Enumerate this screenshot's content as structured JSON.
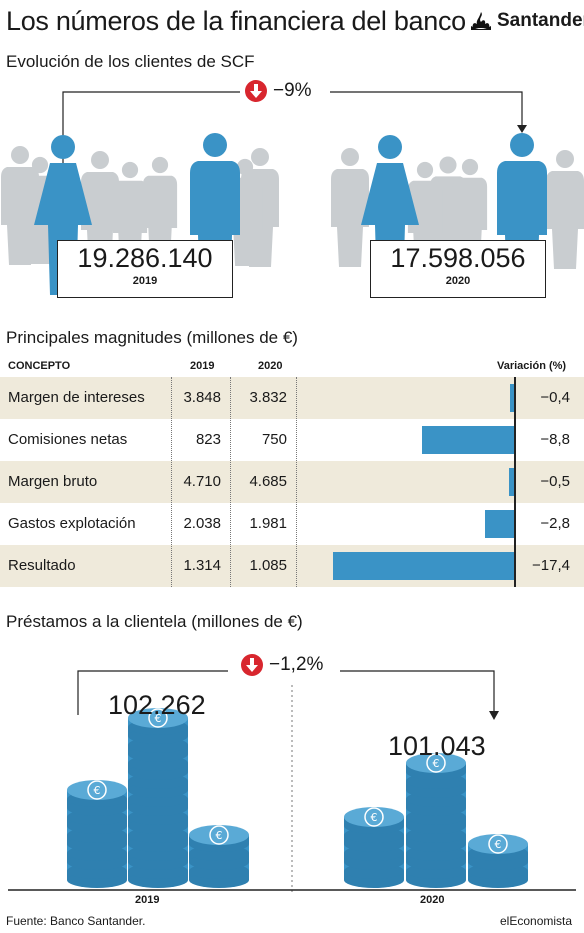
{
  "title": "Los números de la financiera del banco",
  "brand": "Santander",
  "colors": {
    "accent": "#3a93c6",
    "down": "#d8262e",
    "person": "#c9cdd0",
    "shade": "#efeadb"
  },
  "clients": {
    "subtitle": "Evolución de los clientes de SCF",
    "change": "−9%",
    "v2019": "19.286.140",
    "y2019": "2019",
    "v2020": "17.598.056",
    "y2020": "2020"
  },
  "magnitudes": {
    "subtitle": "Principales magnitudes (millones de €)",
    "headers": {
      "concept": "CONCEPTO",
      "y2019": "2019",
      "y2020": "2020",
      "variation": "Variación (%)"
    },
    "rows": [
      {
        "concept": "Margen de intereses",
        "v2019": "3.848",
        "v2020": "3.832",
        "var": "−0,4"
      },
      {
        "concept": "Comisiones netas",
        "v2019": "823",
        "v2020": "750",
        "var": "−8,8"
      },
      {
        "concept": "Margen bruto",
        "v2019": "4.710",
        "v2020": "4.685",
        "var": "−0,5"
      },
      {
        "concept": "Gastos explotación",
        "v2019": "2.038",
        "v2020": "1.981",
        "var": "−2,8"
      },
      {
        "concept": "Resultado",
        "v2019": "1.314",
        "v2020": "1.085",
        "var": "−17,4"
      }
    ]
  },
  "loans": {
    "subtitle": "Préstamos a la clientela (millones de €)",
    "change": "−1,2%",
    "v2019": "102.262",
    "v2020": "101.043",
    "y2019": "2019",
    "y2020": "2020"
  },
  "footer": {
    "source": "Fuente: Banco Santander.",
    "brand": "elEconomista"
  },
  "chart_data": {
    "type": "bar",
    "categories": [
      "Margen de intereses",
      "Comisiones netas",
      "Margen bruto",
      "Gastos explotación",
      "Resultado"
    ],
    "series": [
      {
        "name": "2019",
        "values": [
          3848,
          823,
          4710,
          2038,
          1314
        ]
      },
      {
        "name": "2020",
        "values": [
          3832,
          750,
          4685,
          1981,
          1085
        ]
      },
      {
        "name": "Variación (%)",
        "values": [
          -0.4,
          -8.8,
          -0.5,
          -2.8,
          -17.4
        ]
      }
    ]
  }
}
